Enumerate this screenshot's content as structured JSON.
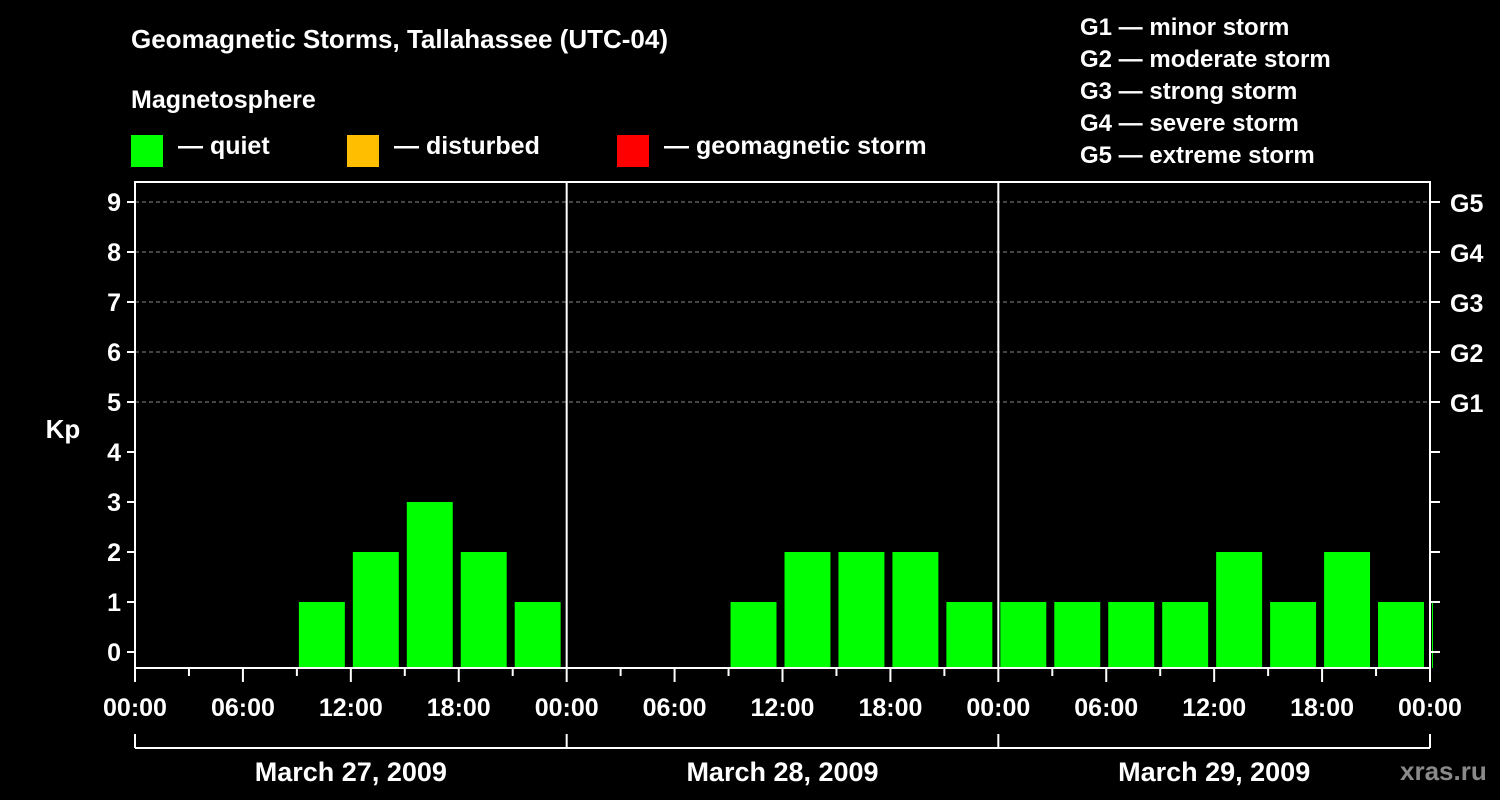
{
  "header": {
    "title": "Geomagnetic Storms, Tallahassee (UTC-04)",
    "magnetosphere_label": "Magnetosphere"
  },
  "legend": [
    {
      "label": "— quiet",
      "color": "#00ff00"
    },
    {
      "label": "— disturbed",
      "color": "#ffbf00"
    },
    {
      "label": "— geomagnetic storm",
      "color": "#ff0000"
    }
  ],
  "storm_scale": [
    "G1 — minor storm",
    "G2 — moderate storm",
    "G3 — strong storm",
    "G4 — severe storm",
    "G5 — extreme storm"
  ],
  "watermark": "xras.ru",
  "chart_data": {
    "type": "bar",
    "ylabel": "Kp",
    "ylim": [
      0,
      9
    ],
    "yticks": [
      0,
      1,
      2,
      3,
      4,
      5,
      6,
      7,
      8,
      9
    ],
    "right_axis_labels": [
      {
        "kp": 5,
        "label": "G1"
      },
      {
        "kp": 6,
        "label": "G2"
      },
      {
        "kp": 7,
        "label": "G3"
      },
      {
        "kp": 8,
        "label": "G4"
      },
      {
        "kp": 9,
        "label": "G5"
      }
    ],
    "xtick_labels": [
      "00:00",
      "06:00",
      "12:00",
      "18:00",
      "00:00",
      "06:00",
      "12:00",
      "18:00",
      "00:00",
      "06:00",
      "12:00",
      "18:00",
      "00:00"
    ],
    "days": [
      "March 27, 2009",
      "March 28, 2009",
      "March 29, 2009"
    ],
    "interval_hours": 3,
    "grid": true,
    "series": [
      {
        "values": [
          0,
          0,
          0,
          1,
          2,
          3,
          2,
          1,
          0,
          0,
          0,
          1,
          2,
          2,
          2,
          1,
          1,
          1,
          1,
          1,
          2,
          1,
          2,
          1,
          1
        ],
        "colors": [
          "#00ff00",
          "#00ff00",
          "#00ff00",
          "#00ff00",
          "#00ff00",
          "#00ff00",
          "#00ff00",
          "#00ff00",
          "#00ff00",
          "#00ff00",
          "#00ff00",
          "#00ff00",
          "#00ff00",
          "#00ff00",
          "#00ff00",
          "#00ff00",
          "#00ff00",
          "#00ff00",
          "#00ff00",
          "#00ff00",
          "#00ff00",
          "#00ff00",
          "#00ff00",
          "#00ff00",
          "#00ff00"
        ]
      }
    ]
  }
}
